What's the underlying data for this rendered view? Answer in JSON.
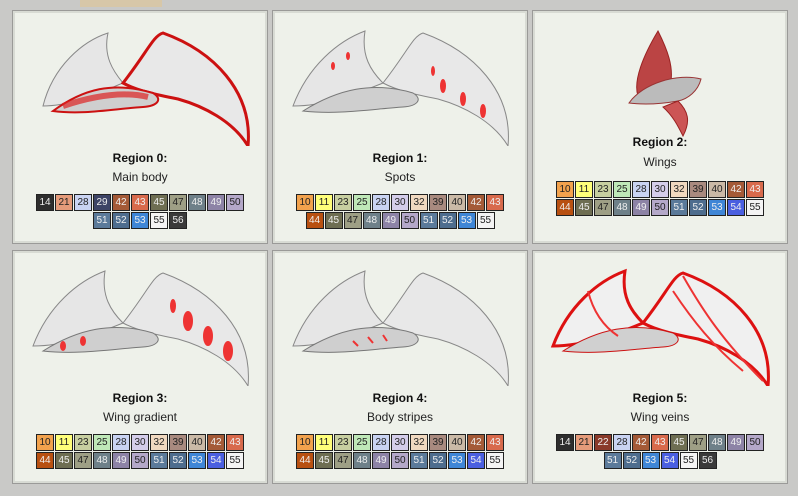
{
  "palette": {
    "10": {
      "bg": "#f2a24d",
      "fg": "#222"
    },
    "11": {
      "bg": "#ffff7a",
      "fg": "#222"
    },
    "14": {
      "bg": "#2e2e2e",
      "fg": "#eee"
    },
    "21": {
      "bg": "#e59b7a",
      "fg": "#222"
    },
    "22": {
      "bg": "#8a3a2a",
      "fg": "#eee"
    },
    "23": {
      "bg": "#c7cfa0",
      "fg": "#222"
    },
    "25": {
      "bg": "#bfe8b8",
      "fg": "#222"
    },
    "28": {
      "bg": "#c9d3f2",
      "fg": "#222"
    },
    "29": {
      "bg": "#3d4466",
      "fg": "#eee"
    },
    "30": {
      "bg": "#d4cdea",
      "fg": "#222"
    },
    "32": {
      "bg": "#f0d8bf",
      "fg": "#222"
    },
    "39": {
      "bg": "#a98a7f",
      "fg": "#222"
    },
    "40": {
      "bg": "#cab9a6",
      "fg": "#222"
    },
    "42": {
      "bg": "#a45a37",
      "fg": "#eee"
    },
    "43": {
      "bg": "#d86a4c",
      "fg": "#eee"
    },
    "44": {
      "bg": "#b85011",
      "fg": "#eee"
    },
    "45": {
      "bg": "#6e6e52",
      "fg": "#eee"
    },
    "47": {
      "bg": "#9e9f85",
      "fg": "#222"
    },
    "48": {
      "bg": "#6e8089",
      "fg": "#eee"
    },
    "49": {
      "bg": "#8d83a6",
      "fg": "#eee"
    },
    "50": {
      "bg": "#b4a8c9",
      "fg": "#222"
    },
    "51": {
      "bg": "#5b7a9a",
      "fg": "#eee"
    },
    "52": {
      "bg": "#4e6d8e",
      "fg": "#eee"
    },
    "53": {
      "bg": "#3f86d6",
      "fg": "#eee"
    },
    "54": {
      "bg": "#4a5fe0",
      "fg": "#eee"
    },
    "55": {
      "bg": "#f4f4f4",
      "fg": "#222"
    },
    "56": {
      "bg": "#3a3a3a",
      "fg": "#eee"
    }
  },
  "regions": [
    {
      "title": "Region 0:",
      "name": "Main body",
      "rows": [
        [
          "14",
          "21",
          "28",
          "29",
          "42",
          "43",
          "45",
          "47",
          "48",
          "49",
          "50"
        ],
        [
          "51",
          "52",
          "53",
          "55",
          "56"
        ]
      ]
    },
    {
      "title": "Region 1:",
      "name": "Spots",
      "rows": [
        [
          "10",
          "11",
          "23",
          "25",
          "28",
          "30",
          "32",
          "39",
          "40",
          "42",
          "43"
        ],
        [
          "44",
          "45",
          "47",
          "48",
          "49",
          "50",
          "51",
          "52",
          "53",
          "55"
        ]
      ]
    },
    {
      "title": "Region 2:",
      "name": "Wings",
      "rows": [
        [
          "10",
          "11",
          "23",
          "25",
          "28",
          "30",
          "32",
          "39",
          "40",
          "42",
          "43"
        ],
        [
          "44",
          "45",
          "47",
          "48",
          "49",
          "50",
          "51",
          "52",
          "53",
          "54",
          "55"
        ]
      ]
    },
    {
      "title": "Region 3:",
      "name": "Wing gradient",
      "rows": [
        [
          "10",
          "11",
          "23",
          "25",
          "28",
          "30",
          "32",
          "39",
          "40",
          "42",
          "43"
        ],
        [
          "44",
          "45",
          "47",
          "48",
          "49",
          "50",
          "51",
          "52",
          "53",
          "54",
          "55"
        ]
      ]
    },
    {
      "title": "Region 4:",
      "name": "Body stripes",
      "rows": [
        [
          "10",
          "11",
          "23",
          "25",
          "28",
          "30",
          "32",
          "39",
          "40",
          "42",
          "43"
        ],
        [
          "44",
          "45",
          "47",
          "48",
          "49",
          "50",
          "51",
          "52",
          "53",
          "54",
          "55"
        ]
      ]
    },
    {
      "title": "Region 5:",
      "name": "Wing veins",
      "rows": [
        [
          "14",
          "21",
          "22",
          "28",
          "42",
          "43",
          "45",
          "47",
          "48",
          "49",
          "50"
        ],
        [
          "51",
          "52",
          "53",
          "54",
          "55",
          "56"
        ]
      ]
    }
  ]
}
